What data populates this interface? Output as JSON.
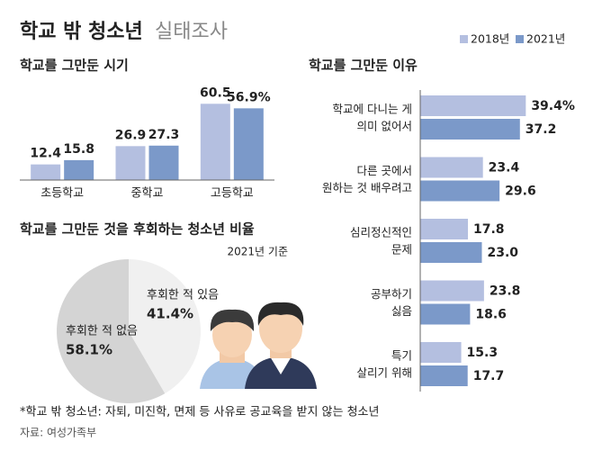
{
  "title": "학교 밖 청소년",
  "subtitle": "실태조사",
  "footnote": "*학교 밖 청소년: 자퇴, 미진학, 면제 등 사유로 공교육을 받지 않는 청소년",
  "source": "자료: 여성가족부",
  "chart_data": [
    {
      "type": "bar",
      "title": "학교를 그만둔 시기",
      "categories": [
        "초등학교",
        "중학교",
        "고등학교"
      ],
      "series": [
        {
          "name": "2018년",
          "color": "#b4bfe0",
          "values": [
            12.4,
            26.9,
            60.5
          ]
        },
        {
          "name": "2021년",
          "color": "#7b99c9",
          "values": [
            15.8,
            27.3,
            56.9
          ],
          "value_labels": [
            "15.8",
            "27.3",
            "56.9%"
          ]
        }
      ],
      "ylim": [
        0,
        65
      ]
    },
    {
      "type": "hbar",
      "title": "학교를 그만둔 이유",
      "categories": [
        "학교에 다니는 게\n의미 없어서",
        "다른 곳에서\n원하는 것 배우려고",
        "심리정신적인\n문제",
        "공부하기\n싫음",
        "특기\n살리기 위해"
      ],
      "series": [
        {
          "color": "#b4bfe0",
          "values": [
            39.4,
            23.4,
            17.8,
            23.8,
            15.3
          ],
          "value_labels": [
            "39.4%",
            "23.4",
            "17.8",
            "23.8",
            "15.3"
          ]
        },
        {
          "color": "#7b99c9",
          "values": [
            37.2,
            29.6,
            23.0,
            18.6,
            17.7
          ],
          "value_labels": [
            "37.2",
            "29.6",
            "23.0",
            "18.6",
            "17.7"
          ]
        }
      ],
      "xlim": [
        0,
        45
      ]
    },
    {
      "type": "pie",
      "title": "학교를 그만둔 것을 후회하는 청소년 비율",
      "subtitle": "2021년 기준",
      "categories": [
        "후회한 적 있음",
        "후회한 적 없음"
      ],
      "values": [
        41.4,
        58.1
      ],
      "value_labels": [
        "41.4%",
        "58.1%"
      ],
      "colors": [
        "#f0f0f0",
        "#d4d4d4"
      ]
    }
  ]
}
